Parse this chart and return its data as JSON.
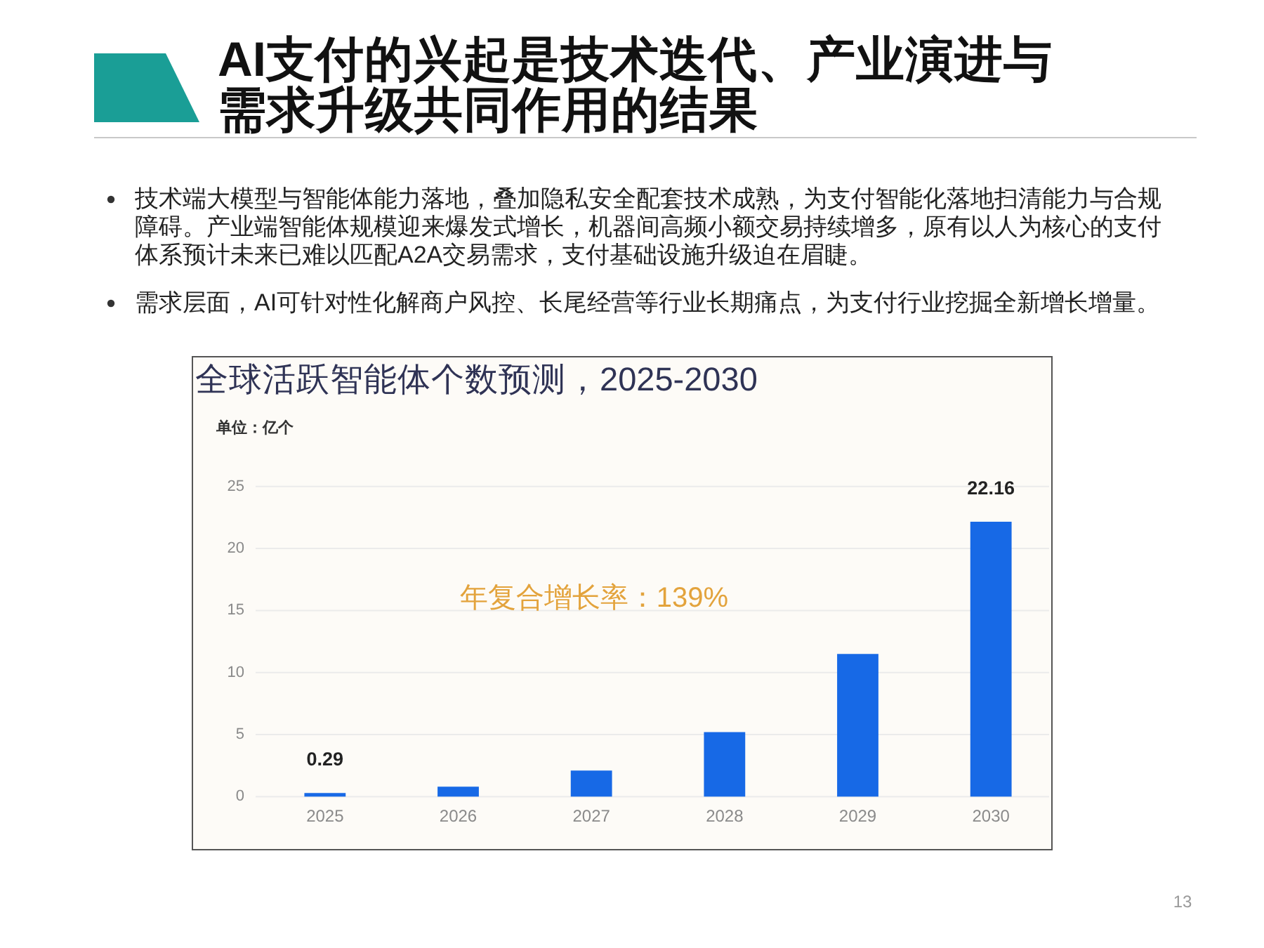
{
  "chart_data": {
    "type": "bar",
    "title": "AI支付的兴起是技术迭代、产业演进与需求升级共同作用的结果",
    "subtitle": "全球活跃智能体个数预测，2025-2030",
    "ylabel": "单位：亿个",
    "categories": [
      "2025",
      "2026",
      "2027",
      "2028",
      "2029",
      "2030"
    ],
    "values": [
      0.29,
      0.8,
      2.1,
      5.2,
      11.5,
      22.16
    ],
    "value_labels": [
      "0.29",
      null,
      null,
      null,
      null,
      "22.16"
    ],
    "color": "#1769e6",
    "ylim": [
      0,
      25
    ],
    "yticks": [
      0,
      5,
      10,
      15,
      20,
      25
    ],
    "grid": "y",
    "annotations": [
      "技术端大模型与智能体能力落地，叠加隐私安全配套技术成熟，为支付智能化落地扫清能力与合规障碍。产业端智能体规模迎来爆发式增长，机器间高频小额交易持续增多，原有以人为核心的支付体系预计未来已难以匹配A2A交易需求，支付基础设施升级迫在眉睫。",
      "需求层面，AI可针对性化解商户风控、长尾经营等行业长期痛点，为支付行业挖掘全新增长增量。",
      "年复合增长率：139%",
      "13"
    ]
  }
}
